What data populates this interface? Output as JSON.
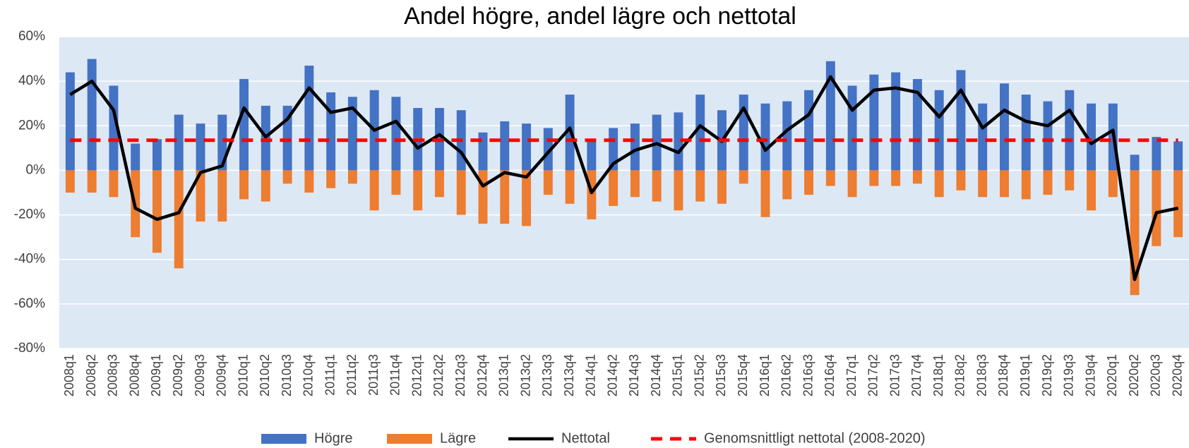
{
  "chart_data": {
    "type": "bar-line",
    "title": "Andel högre, andel lägre och nettotal",
    "categories": [
      "2008q1",
      "2008q2",
      "2008q3",
      "2008q4",
      "2009q1",
      "2009q2",
      "2009q3",
      "2009q4",
      "2010q1",
      "2010q2",
      "2010q3",
      "2010q4",
      "2011q1",
      "2011q2",
      "2011q3",
      "2011q4",
      "2012q1",
      "2012q2",
      "2012q3",
      "2012q4",
      "2013q1",
      "2013q2",
      "2013q3",
      "2013q4",
      "2014q1",
      "2014q2",
      "2014q3",
      "2014q4",
      "2015q1",
      "2015q2",
      "2015q3",
      "2015q4",
      "2016q1",
      "2016q2",
      "2016q3",
      "2016q4",
      "2017q1",
      "2017q2",
      "2017q3",
      "2017q4",
      "2018q1",
      "2018q2",
      "2018q3",
      "2018q4",
      "2019q1",
      "2019q2",
      "2019q3",
      "2019q4",
      "2020q1",
      "2020q2",
      "2020q3",
      "2020q4"
    ],
    "series": [
      {
        "name": "Högre",
        "type": "bar",
        "color": "#4472c4",
        "values": [
          44,
          50,
          38,
          12,
          14,
          25,
          21,
          25,
          41,
          29,
          29,
          47,
          35,
          33,
          36,
          33,
          28,
          28,
          27,
          17,
          22,
          21,
          19,
          34,
          13,
          19,
          21,
          25,
          26,
          34,
          27,
          34,
          30,
          31,
          36,
          49,
          38,
          43,
          44,
          41,
          36,
          45,
          30,
          39,
          34,
          31,
          36,
          30,
          30,
          7,
          15,
          13
        ]
      },
      {
        "name": "Lägre",
        "type": "bar",
        "color": "#ed7d31",
        "values": [
          -10,
          -10,
          -12,
          -30,
          -37,
          -44,
          -23,
          -23,
          -13,
          -14,
          -6,
          -10,
          -8,
          -6,
          -18,
          -11,
          -18,
          -12,
          -20,
          -24,
          -24,
          -25,
          -11,
          -15,
          -22,
          -16,
          -12,
          -14,
          -18,
          -14,
          -15,
          -6,
          -21,
          -13,
          -11,
          -7,
          -12,
          -7,
          -7,
          -6,
          -12,
          -9,
          -12,
          -12,
          -13,
          -11,
          -9,
          -18,
          -12,
          -56,
          -34,
          -30
        ]
      },
      {
        "name": "Nettotal",
        "type": "line",
        "color": "#000000",
        "values": [
          34,
          40,
          27,
          -17,
          -22,
          -19,
          -1,
          2,
          28,
          15,
          23,
          37,
          26,
          28,
          18,
          22,
          10,
          16,
          8,
          -7,
          -1,
          -3,
          8,
          19,
          -10,
          3,
          9,
          12,
          8,
          20,
          13,
          28,
          9,
          18,
          25,
          42,
          27,
          36,
          37,
          35,
          24,
          36,
          19,
          27,
          22,
          20,
          27,
          12,
          18,
          -49,
          -19,
          -17
        ]
      },
      {
        "name": "Genomsnittligt nettotal (2008-2020)",
        "type": "hline",
        "color": "#ff0000",
        "value": 13.5
      }
    ],
    "ylim": [
      -80,
      60
    ],
    "yticks": [
      {
        "value": -80,
        "label": "-80%"
      },
      {
        "value": -60,
        "label": "-60%"
      },
      {
        "value": -40,
        "label": "-40%"
      },
      {
        "value": -20,
        "label": "-20%"
      },
      {
        "value": 0,
        "label": "0%"
      },
      {
        "value": 20,
        "label": "20%"
      },
      {
        "value": 40,
        "label": "40%"
      },
      {
        "value": 60,
        "label": "60%"
      }
    ],
    "grid": true,
    "legend": "bottom"
  }
}
